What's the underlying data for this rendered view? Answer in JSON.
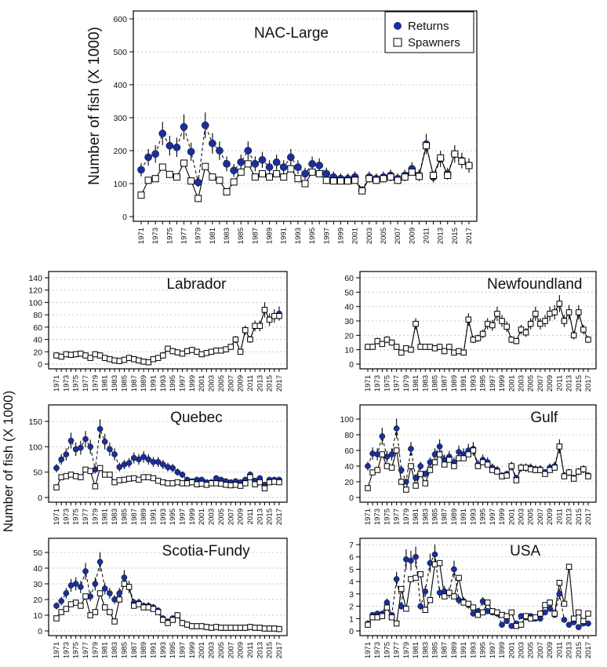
{
  "figure": {
    "ylabel_top": "Number of fish (X 1000)",
    "ylabel_shared": "Number of fish (X 1000)",
    "legend": {
      "returns_label": "Returns",
      "spawners_label": "Spawners",
      "placement": "top-right"
    },
    "colors": {
      "returns": "#1a2f9c",
      "spawners_fill": "#ffffff",
      "line": "#000000",
      "grid": "#c8c8c8"
    },
    "x_tick_labels": [
      "1971",
      "1973",
      "1975",
      "1977",
      "1979",
      "1981",
      "1983",
      "1985",
      "1987",
      "1989",
      "1991",
      "1993",
      "1995",
      "1997",
      "1999",
      "2001",
      "2003",
      "2005",
      "2007",
      "2009",
      "2011",
      "2013",
      "2015",
      "2017"
    ]
  },
  "chart_data": [
    {
      "type": "scatter",
      "title": "NAC-Large",
      "xlim": [
        1971,
        2017
      ],
      "ylim": [
        0,
        600
      ],
      "yticks": [
        0,
        100,
        200,
        300,
        400,
        500,
        600
      ],
      "x": [
        1971,
        1972,
        1973,
        1974,
        1975,
        1976,
        1977,
        1978,
        1979,
        1980,
        1981,
        1982,
        1983,
        1984,
        1985,
        1986,
        1987,
        1988,
        1989,
        1990,
        1991,
        1992,
        1993,
        1994,
        1995,
        1996,
        1997,
        1998,
        1999,
        2000,
        2001,
        2002,
        2003,
        2004,
        2005,
        2006,
        2007,
        2008,
        2009,
        2010,
        2011,
        2012,
        2013,
        2014,
        2015,
        2016,
        2017
      ],
      "series": [
        {
          "name": "Returns",
          "values": [
            142,
            180,
            190,
            252,
            215,
            210,
            272,
            197,
            104,
            277,
            222,
            200,
            160,
            140,
            165,
            200,
            160,
            172,
            150,
            165,
            150,
            180,
            150,
            130,
            160,
            155,
            130,
            120,
            115,
            115,
            120,
            80,
            120,
            115,
            120,
            125,
            115,
            125,
            145,
            125,
            220,
            120,
            175,
            130,
            190,
            170,
            155
          ]
        },
        {
          "name": "Spawners",
          "values": [
            65,
            110,
            115,
            150,
            128,
            120,
            162,
            108,
            55,
            152,
            120,
            110,
            75,
            105,
            135,
            160,
            120,
            130,
            120,
            130,
            120,
            145,
            115,
            100,
            135,
            130,
            110,
            108,
            108,
            108,
            110,
            78,
            115,
            110,
            115,
            120,
            110,
            120,
            135,
            122,
            215,
            125,
            178,
            125,
            190,
            168,
            155
          ]
        }
      ]
    },
    {
      "type": "scatter",
      "title": "Labrador",
      "xlim": [
        1971,
        2017
      ],
      "ylim": [
        0,
        140
      ],
      "yticks": [
        0,
        20,
        40,
        60,
        80,
        100,
        120,
        140
      ],
      "x": [
        1971,
        1972,
        1973,
        1974,
        1975,
        1976,
        1977,
        1978,
        1979,
        1980,
        1981,
        1982,
        1983,
        1984,
        1985,
        1986,
        1987,
        1988,
        1989,
        1990,
        1991,
        1992,
        1993,
        1994,
        1995,
        1996,
        1997,
        1998,
        1999,
        2000,
        2001,
        2002,
        2003,
        2004,
        2005,
        2006,
        2007,
        2008,
        2009,
        2010,
        2011,
        2012,
        2013,
        2014,
        2015,
        2016,
        2017
      ],
      "series": [
        {
          "name": "Returns",
          "values": [
            14,
            12,
            16,
            15,
            16,
            17,
            14,
            10,
            16,
            14,
            10,
            8,
            6,
            5,
            7,
            10,
            8,
            6,
            4,
            3,
            8,
            10,
            14,
            25,
            21,
            19,
            17,
            21,
            23,
            20,
            16,
            18,
            20,
            22,
            22,
            24,
            28,
            40,
            20,
            55,
            40,
            62,
            62,
            88,
            72,
            78,
            82
          ]
        },
        {
          "name": "Spawners",
          "values": [
            14,
            12,
            16,
            15,
            16,
            17,
            14,
            10,
            16,
            14,
            10,
            8,
            6,
            5,
            7,
            10,
            8,
            6,
            4,
            3,
            8,
            10,
            14,
            25,
            21,
            19,
            17,
            21,
            23,
            20,
            16,
            18,
            20,
            22,
            22,
            24,
            28,
            40,
            20,
            55,
            40,
            62,
            62,
            88,
            72,
            78,
            78
          ]
        }
      ]
    },
    {
      "type": "scatter",
      "title": "Newfoundland",
      "xlim": [
        1971,
        2017
      ],
      "ylim": [
        0,
        60
      ],
      "yticks": [
        0,
        10,
        20,
        30,
        40,
        50,
        60
      ],
      "x": [
        1971,
        1972,
        1973,
        1974,
        1975,
        1976,
        1977,
        1978,
        1979,
        1980,
        1981,
        1982,
        1983,
        1984,
        1985,
        1986,
        1987,
        1988,
        1989,
        1990,
        1991,
        1992,
        1993,
        1994,
        1995,
        1996,
        1997,
        1998,
        1999,
        2000,
        2001,
        2002,
        2003,
        2004,
        2005,
        2006,
        2007,
        2008,
        2009,
        2010,
        2011,
        2012,
        2013,
        2014,
        2015,
        2016,
        2017
      ],
      "series": [
        {
          "name": "Returns",
          "values": [
            12,
            12,
            16,
            14,
            17,
            15,
            12,
            8,
            11,
            10,
            28,
            12,
            12,
            12,
            11,
            12,
            9,
            12,
            8,
            9,
            8,
            31,
            17,
            18,
            21,
            28,
            27,
            35,
            30,
            26,
            17,
            16,
            24,
            22,
            28,
            35,
            28,
            30,
            35,
            36,
            42,
            30,
            36,
            20,
            36,
            24,
            17
          ]
        },
        {
          "name": "Spawners",
          "values": [
            12,
            12,
            16,
            14,
            17,
            15,
            12,
            8,
            11,
            10,
            28,
            12,
            12,
            12,
            11,
            12,
            9,
            12,
            8,
            9,
            8,
            31,
            17,
            18,
            21,
            28,
            27,
            35,
            30,
            26,
            17,
            16,
            24,
            22,
            28,
            35,
            28,
            30,
            35,
            36,
            42,
            30,
            36,
            20,
            36,
            24,
            17
          ]
        }
      ]
    },
    {
      "type": "scatter",
      "title": "Quebec",
      "xlim": [
        1971,
        2017
      ],
      "ylim": [
        0,
        170
      ],
      "yticks": [
        0,
        50,
        100,
        150
      ],
      "x": [
        1971,
        1972,
        1973,
        1974,
        1975,
        1976,
        1977,
        1978,
        1979,
        1980,
        1981,
        1982,
        1983,
        1984,
        1985,
        1986,
        1987,
        1988,
        1989,
        1990,
        1991,
        1992,
        1993,
        1994,
        1995,
        1996,
        1997,
        1998,
        1999,
        2000,
        2001,
        2002,
        2003,
        2004,
        2005,
        2006,
        2007,
        2008,
        2009,
        2010,
        2011,
        2012,
        2013,
        2014,
        2015,
        2016,
        2017
      ],
      "series": [
        {
          "name": "Returns",
          "values": [
            58,
            75,
            85,
            112,
            95,
            98,
            115,
            100,
            55,
            135,
            110,
            95,
            85,
            60,
            65,
            68,
            78,
            75,
            80,
            75,
            70,
            70,
            65,
            60,
            58,
            50,
            45,
            35,
            32,
            35,
            35,
            30,
            30,
            38,
            35,
            32,
            30,
            32,
            30,
            35,
            45,
            33,
            38,
            25,
            35,
            35,
            35
          ]
        },
        {
          "name": "Spawners",
          "values": [
            20,
            40,
            42,
            45,
            42,
            40,
            55,
            52,
            22,
            58,
            45,
            45,
            30,
            34,
            35,
            37,
            38,
            35,
            40,
            40,
            38,
            33,
            30,
            28,
            28,
            30,
            28,
            28,
            30,
            26,
            27,
            25,
            28,
            28,
            27,
            25,
            24,
            25,
            23,
            28,
            40,
            26,
            30,
            18,
            30,
            31,
            30
          ]
        }
      ]
    },
    {
      "type": "scatter",
      "title": "Gulf",
      "xlim": [
        1971,
        2017
      ],
      "ylim": [
        0,
        110
      ],
      "yticks": [
        0,
        20,
        40,
        60,
        80,
        100
      ],
      "x": [
        1971,
        1972,
        1973,
        1974,
        1975,
        1976,
        1977,
        1978,
        1979,
        1980,
        1981,
        1982,
        1983,
        1984,
        1985,
        1986,
        1987,
        1988,
        1989,
        1990,
        1991,
        1992,
        1993,
        1994,
        1995,
        1996,
        1997,
        1998,
        1999,
        2000,
        2001,
        2002,
        2003,
        2004,
        2005,
        2006,
        2007,
        2008,
        2009,
        2010,
        2011,
        2012,
        2013,
        2014,
        2015,
        2016,
        2017
      ],
      "series": [
        {
          "name": "Returns",
          "values": [
            40,
            56,
            55,
            78,
            52,
            55,
            88,
            35,
            20,
            62,
            25,
            40,
            30,
            45,
            55,
            65,
            48,
            52,
            45,
            58,
            55,
            60,
            62,
            42,
            48,
            45,
            38,
            35,
            28,
            30,
            40,
            25,
            38,
            38,
            38,
            36,
            36,
            32,
            38,
            40,
            65,
            28,
            32,
            25,
            33,
            36,
            28
          ]
        },
        {
          "name": "Spawners",
          "values": [
            12,
            32,
            35,
            55,
            40,
            38,
            60,
            20,
            10,
            40,
            15,
            30,
            18,
            35,
            45,
            55,
            42,
            48,
            40,
            50,
            50,
            55,
            60,
            40,
            45,
            42,
            35,
            33,
            27,
            28,
            40,
            22,
            38,
            38,
            36,
            35,
            35,
            30,
            35,
            38,
            65,
            27,
            32,
            24,
            33,
            36,
            27
          ]
        }
      ]
    },
    {
      "type": "scatter",
      "title": "Scotia-Fundy",
      "xlim": [
        1971,
        2017
      ],
      "ylim": [
        0,
        55
      ],
      "yticks": [
        0,
        10,
        20,
        30,
        40,
        50
      ],
      "x": [
        1971,
        1972,
        1973,
        1974,
        1975,
        1976,
        1977,
        1978,
        1979,
        1980,
        1981,
        1982,
        1983,
        1984,
        1985,
        1986,
        1987,
        1988,
        1989,
        1990,
        1991,
        1992,
        1993,
        1994,
        1995,
        1996,
        1997,
        1998,
        1999,
        2000,
        2001,
        2002,
        2003,
        2004,
        2005,
        2006,
        2007,
        2008,
        2009,
        2010,
        2011,
        2012,
        2013,
        2014,
        2015,
        2016,
        2017
      ],
      "series": [
        {
          "name": "Returns",
          "values": [
            16,
            19,
            24,
            29,
            30,
            28,
            38,
            22,
            30,
            44,
            27,
            24,
            20,
            24,
            34,
            28,
            18,
            18,
            16,
            16,
            15,
            13,
            8,
            6,
            8,
            10,
            5,
            4,
            3,
            3,
            3,
            2.5,
            2,
            2.5,
            2,
            2,
            2,
            2,
            2,
            2,
            2.5,
            2,
            2,
            1.5,
            1.5,
            1.5,
            1.2
          ]
        },
        {
          "name": "Spawners",
          "values": [
            8,
            12,
            14,
            17,
            18,
            16,
            22,
            10,
            12,
            24,
            15,
            12,
            6,
            20,
            30,
            28,
            16,
            17,
            15,
            15,
            14,
            12,
            7,
            5,
            7,
            10,
            5,
            4,
            3,
            3,
            3,
            2.5,
            2,
            2.5,
            2,
            2,
            2,
            2,
            2,
            2,
            2.5,
            2,
            2,
            1.5,
            1.5,
            1.5,
            1.2
          ]
        }
      ]
    },
    {
      "type": "scatter",
      "title": "USA",
      "xlim": [
        1971,
        2017
      ],
      "ylim": [
        0,
        7
      ],
      "yticks": [
        0,
        1,
        2,
        3,
        4,
        5,
        6,
        7
      ],
      "x": [
        1971,
        1972,
        1973,
        1974,
        1975,
        1976,
        1977,
        1978,
        1979,
        1980,
        1981,
        1982,
        1983,
        1984,
        1985,
        1986,
        1987,
        1988,
        1989,
        1990,
        1991,
        1992,
        1993,
        1994,
        1995,
        1996,
        1997,
        1998,
        1999,
        2000,
        2001,
        2002,
        2003,
        2004,
        2005,
        2006,
        2007,
        2008,
        2009,
        2010,
        2011,
        2012,
        2013,
        2014,
        2015,
        2016,
        2017
      ],
      "series": [
        {
          "name": "Returns",
          "values": [
            0.6,
            1.3,
            1.4,
            1.4,
            2.3,
            1.3,
            4.2,
            2.0,
            5.8,
            5.7,
            6.0,
            2.0,
            3.2,
            5.5,
            6.2,
            3.1,
            3.2,
            3.1,
            5.0,
            2.5,
            2.4,
            2.1,
            1.4,
            1.6,
            2.4,
            1.6,
            1.5,
            1.4,
            0.5,
            0.8,
            0.4,
            0.6,
            1.2,
            1.1,
            1.2,
            1.0,
            1.0,
            1.5,
            1.8,
            1.3,
            3.0,
            0.9,
            0.5,
            0.7,
            0.3,
            0.6,
            0.6
          ]
        },
        {
          "name": "Spawners",
          "values": [
            0.5,
            1.1,
            1.1,
            1.2,
            1.9,
            1.1,
            0.6,
            3.4,
            1.8,
            4.2,
            4.3,
            4.6,
            1.7,
            2.5,
            5.4,
            5.5,
            2.8,
            3.1,
            2.8,
            4.3,
            2.3,
            2.2,
            1.9,
            1.3,
            1.5,
            2.3,
            1.6,
            1.5,
            1.3,
            1.2,
            1.5,
            0.4,
            0.5,
            1.2,
            1.0,
            1.1,
            1.4,
            2.1,
            2.3,
            1.4,
            3.9,
            2.2,
            5.2,
            1.0,
            1.5,
            0.8,
            1.4
          ]
        }
      ]
    }
  ]
}
